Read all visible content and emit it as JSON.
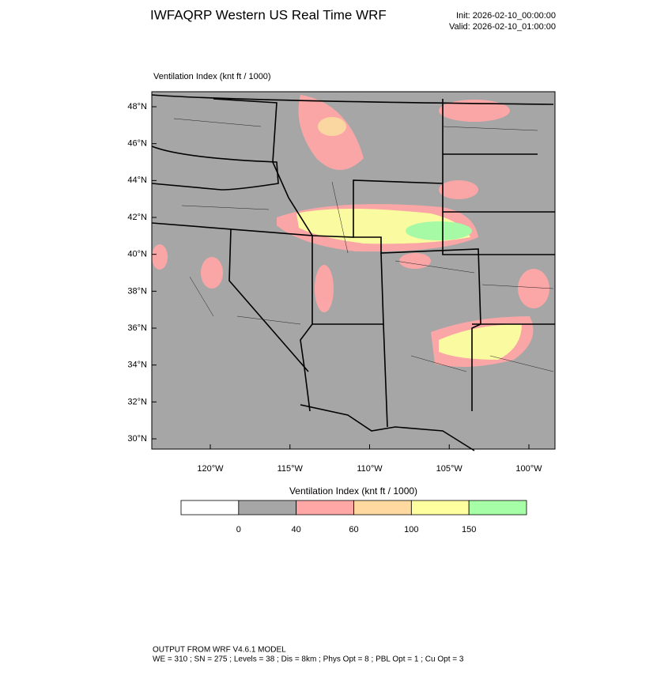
{
  "header": {
    "title": "IWFAQRP Western US Real Time WRF",
    "init": "Init: 2026-02-10_00:00:00",
    "valid": "Valid: 2026-02-10_01:00:00"
  },
  "map": {
    "label": "Ventilation Index   (knt ft / 1000)",
    "lat_ticks": [
      "48°N",
      "46°N",
      "44°N",
      "42°N",
      "40°N",
      "38°N",
      "36°N",
      "34°N",
      "32°N",
      "30°N"
    ],
    "lon_ticks": [
      "120°W",
      "115°W",
      "110°W",
      "105°W",
      "100°W"
    ],
    "background": "#a6a6a6"
  },
  "colorbar": {
    "title": "Ventilation Index  (knt ft / 1000)",
    "colors": [
      "#ffffff",
      "#a6a6a6",
      "#ffa6a6",
      "#ffd9a0",
      "#ffffa0",
      "#a6ffa6"
    ],
    "labels": [
      "0",
      "40",
      "60",
      "100",
      "150"
    ]
  },
  "footer": {
    "line1": "OUTPUT FROM WRF V4.6.1 MODEL",
    "line2": "WE = 310 ; SN = 275 ; Levels = 38 ; Dis = 8km ; Phys Opt = 8 ; PBL Opt = 1 ; Cu Opt = 3"
  }
}
